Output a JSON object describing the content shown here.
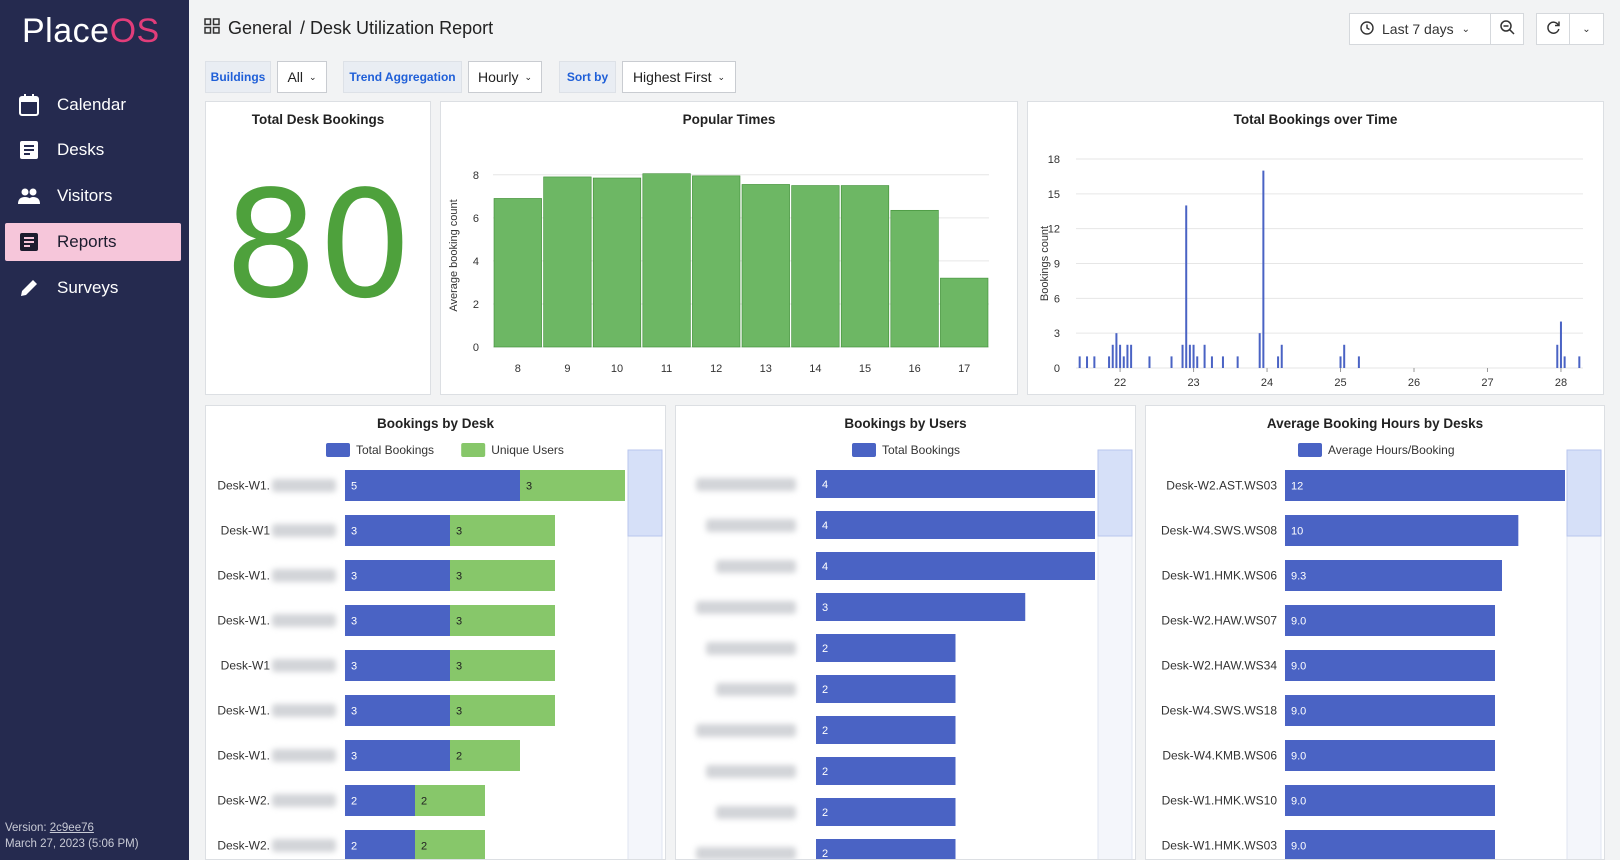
{
  "app": {
    "logo_part1": "Place",
    "logo_part2": "OS"
  },
  "sidebar": {
    "items": [
      {
        "label": "Calendar",
        "icon": "calendar-icon"
      },
      {
        "label": "Desks",
        "icon": "desk-icon"
      },
      {
        "label": "Visitors",
        "icon": "people-icon"
      },
      {
        "label": "Reports",
        "icon": "report-icon",
        "active": true
      },
      {
        "label": "Surveys",
        "icon": "pencil-icon"
      }
    ],
    "version_label": "Version:",
    "version_hash": "2c9ee76",
    "version_date": "March 27, 2023 (5:06 PM)"
  },
  "header": {
    "crumb_root": "General",
    "crumb_page": "/ Desk Utilization Report",
    "time_range": "Last 7 days"
  },
  "filters": {
    "buildings_label": "Buildings",
    "buildings_value": "All",
    "trend_label": "Trend Aggregation",
    "trend_value": "Hourly",
    "sort_label": "Sort by",
    "sort_value": "Highest First"
  },
  "colors": {
    "green": "#4ea13c",
    "bar_green": "#6db764",
    "blue": "#4a63c4",
    "light_green": "#87c76a",
    "active_nav": "#f6c6da"
  },
  "panels": {
    "total": {
      "title": "Total Desk Bookings",
      "value": "80"
    },
    "popular": {
      "title": "Popular Times",
      "ylabel": "Average booking count"
    },
    "over_time": {
      "title": "Total Bookings over Time",
      "ylabel": "Bookings count"
    },
    "by_desk": {
      "title": "Bookings by Desk",
      "legend": [
        "Total Bookings",
        "Unique Users"
      ]
    },
    "by_users": {
      "title": "Bookings by Users",
      "legend": [
        "Total Bookings"
      ]
    },
    "avg_hours": {
      "title": "Average Booking Hours by Desks",
      "legend": [
        "Average Hours/Booking"
      ]
    }
  },
  "chart_data": [
    {
      "type": "bar",
      "title": "Popular Times",
      "ylabel": "Average booking count",
      "categories": [
        "8",
        "9",
        "10",
        "11",
        "12",
        "13",
        "14",
        "15",
        "16",
        "17"
      ],
      "values": [
        6.9,
        7.9,
        7.85,
        8.05,
        7.95,
        7.55,
        7.5,
        7.5,
        6.35,
        3.2
      ],
      "ylim": [
        0,
        8.5
      ],
      "yticks": [
        0,
        2,
        4,
        6,
        8
      ],
      "grid": true
    },
    {
      "type": "bar",
      "title": "Total Bookings over Time",
      "ylabel": "Bookings count",
      "xlim": [
        21.4,
        28.3
      ],
      "ylim": [
        0,
        18
      ],
      "xticks": [
        22,
        23,
        24,
        25,
        26,
        27,
        28
      ],
      "yticks": [
        0,
        3,
        6,
        9,
        12,
        15,
        18
      ],
      "x": [
        21.45,
        21.55,
        21.65,
        21.85,
        21.9,
        21.95,
        22.0,
        22.05,
        22.1,
        22.15,
        22.4,
        22.7,
        22.85,
        22.9,
        22.95,
        23.0,
        23.05,
        23.15,
        23.25,
        23.4,
        23.6,
        23.9,
        23.95,
        24.15,
        24.2,
        25.0,
        25.05,
        25.25,
        27.95,
        28.0,
        28.05,
        28.25
      ],
      "values": [
        1,
        1,
        1,
        1,
        2,
        3,
        2,
        1,
        2,
        2,
        1,
        1,
        2,
        14,
        2,
        2,
        1,
        2,
        1,
        1,
        1,
        3,
        17,
        1,
        2,
        1,
        2,
        1,
        2,
        4,
        1,
        1
      ],
      "grid": true
    },
    {
      "type": "bar",
      "title": "Bookings by Desk",
      "categories": [
        "Desk-W1.",
        "Desk-W1",
        "Desk-W1.",
        "Desk-W1.",
        "Desk-W1",
        "Desk-W1.",
        "Desk-W1.",
        "Desk-W2.",
        "Desk-W2."
      ],
      "series": [
        {
          "name": "Total Bookings",
          "values": [
            5,
            3,
            3,
            3,
            3,
            3,
            3,
            2,
            2
          ]
        },
        {
          "name": "Unique Users",
          "values": [
            3,
            3,
            3,
            3,
            3,
            3,
            2,
            2,
            2
          ]
        }
      ],
      "xlim": [
        0,
        8
      ]
    },
    {
      "type": "bar",
      "title": "Bookings by Users",
      "series": [
        {
          "name": "Total Bookings",
          "values": [
            4,
            4,
            4,
            3,
            2,
            2,
            2,
            2,
            2,
            2
          ]
        }
      ],
      "xlim": [
        0,
        4
      ]
    },
    {
      "type": "bar",
      "title": "Average Booking Hours by Desks",
      "categories": [
        "Desk-W2.AST.WS03",
        "Desk-W4.SWS.WS08",
        "Desk-W1.HMK.WS06",
        "Desk-W2.HAW.WS07",
        "Desk-W2.HAW.WS34",
        "Desk-W4.SWS.WS18",
        "Desk-W4.KMB.WS06",
        "Desk-W1.HMK.WS10",
        "Desk-W1.HMK.WS03"
      ],
      "series": [
        {
          "name": "Average Hours/Booking",
          "values": [
            12,
            10,
            9.3,
            9.0,
            9.0,
            9.0,
            9.0,
            9.0,
            9.0
          ]
        }
      ],
      "value_labels": [
        "12",
        "10",
        "9.3",
        "9.0",
        "9.0",
        "9.0",
        "9.0",
        "9.0",
        "9.0"
      ],
      "xlim": [
        0,
        12
      ]
    }
  ]
}
